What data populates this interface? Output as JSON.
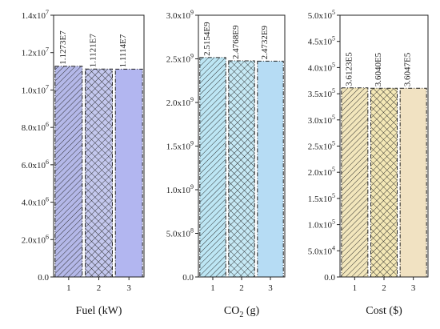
{
  "chart_data": [
    {
      "type": "bar",
      "categories": [
        "1",
        "2",
        "3"
      ],
      "values": [
        11273000,
        11121000,
        11114000
      ],
      "data_labels": [
        "1.1273E7",
        "1.1121E7",
        "1.1114E7"
      ],
      "xlabel": "Fuel (kW)",
      "ylim": [
        0,
        14000000
      ],
      "yticks": [
        {
          "value": 0,
          "mantissa": "0.0",
          "exp": ""
        },
        {
          "value": 2000000,
          "mantissa": "2.0x10",
          "exp": "6"
        },
        {
          "value": 4000000,
          "mantissa": "4.0x10",
          "exp": "6"
        },
        {
          "value": 6000000,
          "mantissa": "6.0x10",
          "exp": "6"
        },
        {
          "value": 8000000,
          "mantissa": "8.0x10",
          "exp": "6"
        },
        {
          "value": 10000000,
          "mantissa": "1.0x10",
          "exp": "7"
        },
        {
          "value": 12000000,
          "mantissa": "1.2x10",
          "exp": "7"
        },
        {
          "value": 14000000,
          "mantissa": "1.4x10",
          "exp": "7"
        }
      ],
      "bar_colors": [
        "#b4b8e8",
        "#c4c8ee",
        "#b2b6f0"
      ],
      "patterns": [
        "diag",
        "cross",
        "solid"
      ]
    },
    {
      "type": "bar",
      "categories": [
        "1",
        "2",
        "3"
      ],
      "values": [
        2515400000,
        2476800000,
        2473200000
      ],
      "data_labels": [
        "2.5154E9",
        "2.4768E9",
        "2.4732E9"
      ],
      "xlabel_main": "CO",
      "xlabel_sub": "2",
      "xlabel_tail": " (g)",
      "ylim": [
        0,
        3000000000
      ],
      "yticks": [
        {
          "value": 0,
          "mantissa": "0.0",
          "exp": ""
        },
        {
          "value": 500000000,
          "mantissa": "5.0x10",
          "exp": "8"
        },
        {
          "value": 1000000000,
          "mantissa": "1.0x10",
          "exp": "9"
        },
        {
          "value": 1500000000,
          "mantissa": "1.5x10",
          "exp": "9"
        },
        {
          "value": 2000000000,
          "mantissa": "2.0x10",
          "exp": "9"
        },
        {
          "value": 2500000000,
          "mantissa": "2.5x10",
          "exp": "9"
        },
        {
          "value": 3000000000,
          "mantissa": "3.0x10",
          "exp": "9"
        }
      ],
      "bar_colors": [
        "#bde6f4",
        "#c6e9f5",
        "#b6dcf4"
      ],
      "patterns": [
        "diag",
        "cross",
        "solid"
      ]
    },
    {
      "type": "bar",
      "categories": [
        "1",
        "2",
        "3"
      ],
      "values": [
        361230,
        360400,
        360470
      ],
      "data_labels": [
        "3.6123E5",
        "3.6040E5",
        "3.6047E5"
      ],
      "xlabel": "Cost ($)",
      "ylim": [
        0,
        500000
      ],
      "yticks": [
        {
          "value": 0,
          "mantissa": "0.0",
          "exp": ""
        },
        {
          "value": 50000,
          "mantissa": "5.0x10",
          "exp": "4"
        },
        {
          "value": 100000,
          "mantissa": "1.0x10",
          "exp": "5"
        },
        {
          "value": 150000,
          "mantissa": "1.5x10",
          "exp": "5"
        },
        {
          "value": 200000,
          "mantissa": "2.0x10",
          "exp": "5"
        },
        {
          "value": 250000,
          "mantissa": "2.5x10",
          "exp": "5"
        },
        {
          "value": 300000,
          "mantissa": "3.0x10",
          "exp": "5"
        },
        {
          "value": 350000,
          "mantissa": "3.5x10",
          "exp": "5"
        },
        {
          "value": 400000,
          "mantissa": "4.0x10",
          "exp": "5"
        },
        {
          "value": 450000,
          "mantissa": "4.5x10",
          "exp": "5"
        },
        {
          "value": 500000,
          "mantissa": "5.0x10",
          "exp": "5"
        }
      ],
      "bar_colors": [
        "#f2e6bc",
        "#f4e8b6",
        "#f1e2c2"
      ],
      "patterns": [
        "diag",
        "cross",
        "solid"
      ]
    }
  ]
}
